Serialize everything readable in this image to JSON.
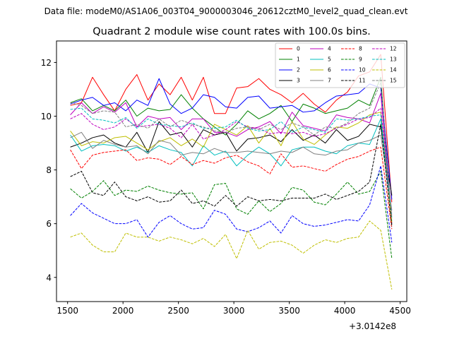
{
  "chart_data": {
    "type": "line",
    "suptitle": "Data file: modeM0/AS1A06_003T04_9000003046_20612cztM0_level2_quad_clean.evt",
    "title": "Quadrant 2 module wise count rates with 100.0s bins.",
    "xlabel": "",
    "ylabel": "",
    "x_offset_label": "+3.0142e8",
    "xlim": [
      1400,
      4560
    ],
    "ylim": [
      3.1,
      12.8
    ],
    "xticks": [
      1500,
      2000,
      2500,
      3000,
      3500,
      4000,
      4500
    ],
    "yticks": [
      4,
      6,
      8,
      10,
      12
    ],
    "legend_position": "top-right",
    "x": [
      1525,
      1625,
      1725,
      1825,
      1925,
      2025,
      2125,
      2225,
      2325,
      2425,
      2525,
      2625,
      2725,
      2825,
      2925,
      3025,
      3125,
      3225,
      3325,
      3425,
      3525,
      3625,
      3725,
      3825,
      3925,
      4025,
      4125,
      4225,
      4325,
      4425
    ],
    "series": [
      {
        "name": "0",
        "color": "#ff0000",
        "dash": "solid",
        "values": [
          10.4,
          10.5,
          11.45,
          10.8,
          10.2,
          11.0,
          11.55,
          10.6,
          11.2,
          10.8,
          11.45,
          10.6,
          11.45,
          10.1,
          10.1,
          11.05,
          11.1,
          11.4,
          11.0,
          10.8,
          10.5,
          10.85,
          10.45,
          10.15,
          10.6,
          10.9,
          11.5,
          11.65,
          12.3,
          6.8
        ]
      },
      {
        "name": "1",
        "color": "#008000",
        "dash": "solid",
        "values": [
          10.5,
          10.65,
          10.2,
          10.4,
          10.2,
          10.6,
          10.0,
          10.3,
          10.2,
          10.25,
          10.8,
          10.3,
          9.9,
          9.6,
          9.3,
          9.7,
          10.2,
          9.9,
          10.1,
          10.4,
          9.8,
          10.45,
          10.3,
          10.1,
          10.2,
          10.3,
          10.6,
          10.4,
          11.45,
          5.95
        ]
      },
      {
        "name": "2",
        "color": "#0000ff",
        "dash": "solid",
        "values": [
          10.45,
          10.6,
          10.7,
          10.4,
          10.5,
          10.2,
          10.6,
          10.4,
          11.4,
          10.45,
          10.1,
          10.3,
          10.8,
          10.7,
          10.35,
          10.3,
          10.7,
          10.75,
          10.3,
          10.35,
          10.4,
          10.15,
          10.2,
          10.5,
          10.75,
          10.8,
          10.85,
          11.2,
          11.05,
          6.9
        ]
      },
      {
        "name": "3",
        "color": "#000000",
        "dash": "solid",
        "values": [
          8.85,
          9.0,
          9.2,
          9.3,
          9.0,
          8.85,
          9.4,
          8.65,
          9.8,
          9.3,
          9.4,
          8.85,
          9.5,
          9.3,
          9.4,
          8.7,
          9.15,
          9.2,
          9.3,
          9.05,
          9.5,
          9.1,
          9.3,
          9.0,
          9.5,
          9.1,
          9.25,
          9.7,
          9.6,
          7.05
        ]
      },
      {
        "name": "4",
        "color": "#bf00bf",
        "dash": "solid",
        "values": [
          10.05,
          10.5,
          10.1,
          10.35,
          10.15,
          10.5,
          9.6,
          10.0,
          9.9,
          9.95,
          9.5,
          9.9,
          9.9,
          9.4,
          9.4,
          9.25,
          9.5,
          9.6,
          9.8,
          9.35,
          10.15,
          9.65,
          9.55,
          9.45,
          10.05,
          9.95,
          9.9,
          9.75,
          10.85,
          6.0
        ]
      },
      {
        "name": "5",
        "color": "#00bfbf",
        "dash": "solid",
        "values": [
          9.3,
          8.7,
          8.9,
          8.95,
          8.9,
          8.7,
          8.85,
          8.65,
          8.9,
          8.75,
          8.65,
          8.15,
          8.9,
          8.55,
          8.7,
          8.15,
          8.55,
          8.85,
          8.6,
          8.15,
          8.75,
          8.85,
          8.85,
          8.7,
          8.6,
          8.9,
          9.0,
          8.95,
          9.9,
          6.1
        ]
      },
      {
        "name": "6",
        "color": "#bfbf00",
        "dash": "solid",
        "values": [
          9.45,
          8.9,
          9.05,
          9.0,
          9.2,
          9.25,
          9.0,
          8.75,
          9.05,
          9.2,
          8.9,
          9.15,
          8.85,
          9.7,
          9.5,
          9.3,
          9.65,
          9.0,
          9.55,
          8.9,
          9.8,
          9.15,
          8.95,
          9.3,
          9.6,
          9.55,
          9.75,
          10.05,
          10.15,
          6.05
        ]
      },
      {
        "name": "7",
        "color": "#808080",
        "dash": "solid",
        "values": [
          9.2,
          9.4,
          8.8,
          9.1,
          8.95,
          8.85,
          8.9,
          8.6,
          9.1,
          9.0,
          8.55,
          8.65,
          8.6,
          8.8,
          8.65,
          8.65,
          8.7,
          8.65,
          8.6,
          8.7,
          8.65,
          8.85,
          8.6,
          8.55,
          8.7,
          8.75,
          9.0,
          9.1,
          9.3,
          6.5
        ]
      },
      {
        "name": "8",
        "color": "#ff0000",
        "dash": "dashed",
        "values": [
          8.75,
          8.05,
          8.55,
          8.65,
          8.7,
          8.75,
          8.35,
          8.45,
          8.4,
          8.2,
          8.5,
          8.2,
          8.35,
          8.25,
          8.45,
          8.55,
          8.3,
          8.15,
          7.85,
          8.6,
          8.1,
          8.15,
          8.05,
          7.95,
          8.2,
          8.4,
          8.5,
          8.7,
          8.85,
          5.8
        ]
      },
      {
        "name": "9",
        "color": "#008000",
        "dash": "dashed",
        "values": [
          7.3,
          6.95,
          7.2,
          7.6,
          7.05,
          7.25,
          7.2,
          7.4,
          7.25,
          7.15,
          7.1,
          7.15,
          6.55,
          7.45,
          7.5,
          6.55,
          6.35,
          6.85,
          6.45,
          6.75,
          7.35,
          7.25,
          6.8,
          6.7,
          7.1,
          7.55,
          7.1,
          7.2,
          7.95,
          4.7
        ]
      },
      {
        "name": "10",
        "color": "#0000ff",
        "dash": "dashed",
        "values": [
          6.3,
          6.75,
          6.4,
          6.2,
          6.0,
          6.0,
          6.15,
          5.5,
          6.05,
          6.3,
          6.0,
          5.8,
          5.85,
          6.5,
          6.35,
          5.8,
          5.7,
          5.85,
          6.1,
          5.65,
          6.3,
          6.0,
          5.9,
          5.95,
          6.05,
          6.15,
          6.1,
          6.7,
          8.15,
          5.3
        ]
      },
      {
        "name": "11",
        "color": "#000000",
        "dash": "dashed",
        "values": [
          7.75,
          7.95,
          7.15,
          7.05,
          7.55,
          7.0,
          6.85,
          7.0,
          6.8,
          6.85,
          7.25,
          6.75,
          6.85,
          6.65,
          7.05,
          6.65,
          7.0,
          6.85,
          6.9,
          6.85,
          6.95,
          6.95,
          6.95,
          7.1,
          6.9,
          7.05,
          7.2,
          7.55,
          9.7,
          5.9
        ]
      },
      {
        "name": "12",
        "color": "#bf00bf",
        "dash": "dashed",
        "values": [
          9.9,
          10.1,
          9.7,
          9.5,
          9.6,
          9.9,
          9.6,
          9.65,
          9.7,
          9.55,
          9.2,
          9.7,
          9.15,
          9.3,
          9.5,
          9.8,
          9.6,
          9.55,
          9.35,
          9.4,
          9.35,
          9.4,
          9.25,
          9.35,
          9.55,
          9.7,
          9.9,
          9.95,
          10.3,
          6.3
        ]
      },
      {
        "name": "13",
        "color": "#00bfbf",
        "dash": "dashed",
        "values": [
          10.25,
          10.3,
          9.9,
          9.85,
          9.75,
          9.95,
          9.55,
          9.9,
          9.7,
          9.65,
          9.6,
          9.75,
          9.55,
          9.55,
          9.6,
          9.85,
          9.55,
          9.45,
          9.5,
          9.8,
          9.4,
          9.6,
          9.5,
          9.4,
          9.9,
          9.85,
          9.9,
          10.0,
          10.05,
          6.25
        ]
      },
      {
        "name": "14",
        "color": "#bfbf00",
        "dash": "dashed",
        "values": [
          5.5,
          5.65,
          5.2,
          4.95,
          4.95,
          5.65,
          5.5,
          5.5,
          5.35,
          5.5,
          5.4,
          5.25,
          5.45,
          5.15,
          5.6,
          4.7,
          5.75,
          5.05,
          5.3,
          5.35,
          5.2,
          4.9,
          5.2,
          5.4,
          5.3,
          5.45,
          5.5,
          6.1,
          5.75,
          3.55
        ]
      },
      {
        "name": "15",
        "color": "#808080",
        "dash": "dashed",
        "values": [
          10.5,
          10.4,
          10.1,
          10.2,
          10.15,
          9.6,
          9.7,
          9.55,
          9.9,
          9.6,
          9.85,
          9.7,
          9.6,
          9.45,
          9.4,
          9.55,
          9.6,
          9.5,
          9.7,
          9.5,
          9.75,
          9.6,
          9.3,
          9.6,
          9.55,
          9.75,
          10.1,
          10.3,
          11.25,
          6.2
        ]
      }
    ]
  }
}
